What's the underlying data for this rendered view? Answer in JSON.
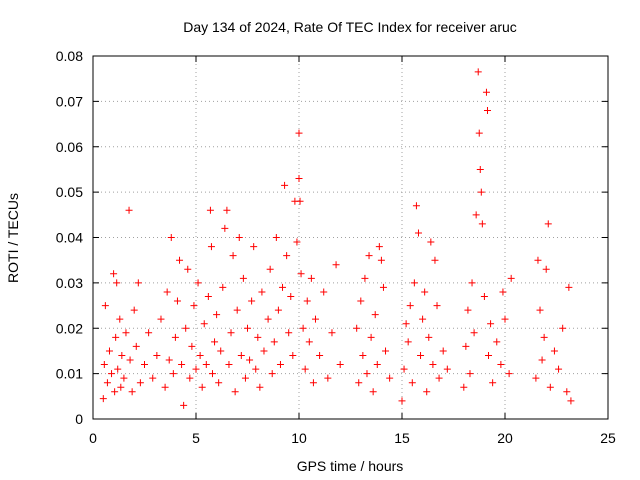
{
  "chart_data": {
    "type": "scatter",
    "title": "Day 134 of 2024, Rate Of TEC Index for receiver aruc",
    "xlabel": "GPS time / hours",
    "ylabel": "ROTI / TECUs",
    "xlim": [
      0,
      25
    ],
    "ylim": [
      0,
      0.08
    ],
    "x_ticks": [
      0,
      5,
      10,
      15,
      20,
      25
    ],
    "x_tick_labels": [
      "0",
      "5",
      "10",
      "15",
      "20",
      "25"
    ],
    "y_ticks": [
      0,
      0.01,
      0.02,
      0.03,
      0.04,
      0.05,
      0.06,
      0.07,
      0.08
    ],
    "y_tick_labels": [
      "0",
      "0.01",
      "0.02",
      "0.03",
      "0.04",
      "0.05",
      "0.06",
      "0.07",
      "0.08"
    ],
    "grid": true,
    "marker": "plus",
    "color": "#ff0000",
    "series": [
      {
        "values": [
          {
            "x": 0.5,
            "y": 0.0045
          },
          {
            "x": 0.55,
            "y": 0.012
          },
          {
            "x": 0.6,
            "y": 0.025
          },
          {
            "x": 0.7,
            "y": 0.008
          },
          {
            "x": 0.8,
            "y": 0.015
          },
          {
            "x": 0.9,
            "y": 0.01
          },
          {
            "x": 1.0,
            "y": 0.032
          },
          {
            "x": 1.05,
            "y": 0.006
          },
          {
            "x": 1.1,
            "y": 0.018
          },
          {
            "x": 1.15,
            "y": 0.03
          },
          {
            "x": 1.2,
            "y": 0.011
          },
          {
            "x": 1.3,
            "y": 0.022
          },
          {
            "x": 1.35,
            "y": 0.007
          },
          {
            "x": 1.4,
            "y": 0.014
          },
          {
            "x": 1.5,
            "y": 0.009
          },
          {
            "x": 1.6,
            "y": 0.019
          },
          {
            "x": 1.75,
            "y": 0.046
          },
          {
            "x": 1.8,
            "y": 0.013
          },
          {
            "x": 1.9,
            "y": 0.006
          },
          {
            "x": 2.0,
            "y": 0.024
          },
          {
            "x": 2.1,
            "y": 0.016
          },
          {
            "x": 2.2,
            "y": 0.03
          },
          {
            "x": 2.3,
            "y": 0.008
          },
          {
            "x": 2.5,
            "y": 0.012
          },
          {
            "x": 2.7,
            "y": 0.019
          },
          {
            "x": 2.9,
            "y": 0.009
          },
          {
            "x": 3.1,
            "y": 0.014
          },
          {
            "x": 3.3,
            "y": 0.022
          },
          {
            "x": 3.5,
            "y": 0.007
          },
          {
            "x": 3.6,
            "y": 0.028
          },
          {
            "x": 3.7,
            "y": 0.013
          },
          {
            "x": 3.8,
            "y": 0.04
          },
          {
            "x": 3.9,
            "y": 0.01
          },
          {
            "x": 4.0,
            "y": 0.018
          },
          {
            "x": 4.1,
            "y": 0.026
          },
          {
            "x": 4.2,
            "y": 0.035
          },
          {
            "x": 4.3,
            "y": 0.012
          },
          {
            "x": 4.4,
            "y": 0.003
          },
          {
            "x": 4.5,
            "y": 0.02
          },
          {
            "x": 4.6,
            "y": 0.033
          },
          {
            "x": 4.7,
            "y": 0.009
          },
          {
            "x": 4.8,
            "y": 0.016
          },
          {
            "x": 4.9,
            "y": 0.025
          },
          {
            "x": 5.0,
            "y": 0.011
          },
          {
            "x": 5.1,
            "y": 0.03
          },
          {
            "x": 5.2,
            "y": 0.014
          },
          {
            "x": 5.3,
            "y": 0.007
          },
          {
            "x": 5.4,
            "y": 0.021
          },
          {
            "x": 5.5,
            "y": 0.012
          },
          {
            "x": 5.6,
            "y": 0.027
          },
          {
            "x": 5.7,
            "y": 0.046
          },
          {
            "x": 5.75,
            "y": 0.038
          },
          {
            "x": 5.8,
            "y": 0.01
          },
          {
            "x": 5.9,
            "y": 0.017
          },
          {
            "x": 6.0,
            "y": 0.023
          },
          {
            "x": 6.1,
            "y": 0.008
          },
          {
            "x": 6.2,
            "y": 0.015
          },
          {
            "x": 6.3,
            "y": 0.029
          },
          {
            "x": 6.4,
            "y": 0.042
          },
          {
            "x": 6.5,
            "y": 0.046
          },
          {
            "x": 6.6,
            "y": 0.012
          },
          {
            "x": 6.7,
            "y": 0.019
          },
          {
            "x": 6.8,
            "y": 0.036
          },
          {
            "x": 6.9,
            "y": 0.006
          },
          {
            "x": 7.0,
            "y": 0.024
          },
          {
            "x": 7.1,
            "y": 0.04
          },
          {
            "x": 7.2,
            "y": 0.014
          },
          {
            "x": 7.3,
            "y": 0.031
          },
          {
            "x": 7.4,
            "y": 0.009
          },
          {
            "x": 7.5,
            "y": 0.02
          },
          {
            "x": 7.6,
            "y": 0.013
          },
          {
            "x": 7.7,
            "y": 0.026
          },
          {
            "x": 7.8,
            "y": 0.038
          },
          {
            "x": 7.9,
            "y": 0.011
          },
          {
            "x": 8.0,
            "y": 0.018
          },
          {
            "x": 8.1,
            "y": 0.007
          },
          {
            "x": 8.2,
            "y": 0.028
          },
          {
            "x": 8.3,
            "y": 0.015
          },
          {
            "x": 8.5,
            "y": 0.022
          },
          {
            "x": 8.6,
            "y": 0.033
          },
          {
            "x": 8.7,
            "y": 0.01
          },
          {
            "x": 8.8,
            "y": 0.017
          },
          {
            "x": 8.9,
            "y": 0.04
          },
          {
            "x": 9.0,
            "y": 0.024
          },
          {
            "x": 9.1,
            "y": 0.012
          },
          {
            "x": 9.2,
            "y": 0.029
          },
          {
            "x": 9.3,
            "y": 0.0515
          },
          {
            "x": 9.4,
            "y": 0.036
          },
          {
            "x": 9.5,
            "y": 0.019
          },
          {
            "x": 9.6,
            "y": 0.027
          },
          {
            "x": 9.7,
            "y": 0.014
          },
          {
            "x": 9.8,
            "y": 0.048
          },
          {
            "x": 9.9,
            "y": 0.039
          },
          {
            "x": 10.0,
            "y": 0.063
          },
          {
            "x": 10.0,
            "y": 0.053
          },
          {
            "x": 10.05,
            "y": 0.048
          },
          {
            "x": 10.1,
            "y": 0.032
          },
          {
            "x": 10.2,
            "y": 0.02
          },
          {
            "x": 10.3,
            "y": 0.011
          },
          {
            "x": 10.4,
            "y": 0.026
          },
          {
            "x": 10.5,
            "y": 0.017
          },
          {
            "x": 10.6,
            "y": 0.031
          },
          {
            "x": 10.7,
            "y": 0.008
          },
          {
            "x": 10.8,
            "y": 0.022
          },
          {
            "x": 11.0,
            "y": 0.014
          },
          {
            "x": 11.2,
            "y": 0.028
          },
          {
            "x": 11.4,
            "y": 0.009
          },
          {
            "x": 11.6,
            "y": 0.019
          },
          {
            "x": 11.8,
            "y": 0.034
          },
          {
            "x": 12.0,
            "y": 0.012
          },
          {
            "x": 12.8,
            "y": 0.02
          },
          {
            "x": 12.9,
            "y": 0.008
          },
          {
            "x": 13.0,
            "y": 0.026
          },
          {
            "x": 13.1,
            "y": 0.014
          },
          {
            "x": 13.2,
            "y": 0.031
          },
          {
            "x": 13.3,
            "y": 0.01
          },
          {
            "x": 13.4,
            "y": 0.036
          },
          {
            "x": 13.5,
            "y": 0.018
          },
          {
            "x": 13.6,
            "y": 0.006
          },
          {
            "x": 13.7,
            "y": 0.023
          },
          {
            "x": 13.8,
            "y": 0.012
          },
          {
            "x": 13.9,
            "y": 0.038
          },
          {
            "x": 14.0,
            "y": 0.035
          },
          {
            "x": 14.1,
            "y": 0.029
          },
          {
            "x": 14.2,
            "y": 0.015
          },
          {
            "x": 14.4,
            "y": 0.009
          },
          {
            "x": 15.0,
            "y": 0.004
          },
          {
            "x": 15.1,
            "y": 0.011
          },
          {
            "x": 15.2,
            "y": 0.021
          },
          {
            "x": 15.3,
            "y": 0.017
          },
          {
            "x": 15.4,
            "y": 0.025
          },
          {
            "x": 15.5,
            "y": 0.008
          },
          {
            "x": 15.6,
            "y": 0.03
          },
          {
            "x": 15.7,
            "y": 0.047
          },
          {
            "x": 15.8,
            "y": 0.041
          },
          {
            "x": 15.9,
            "y": 0.014
          },
          {
            "x": 16.0,
            "y": 0.022
          },
          {
            "x": 16.1,
            "y": 0.028
          },
          {
            "x": 16.2,
            "y": 0.006
          },
          {
            "x": 16.3,
            "y": 0.018
          },
          {
            "x": 16.4,
            "y": 0.039
          },
          {
            "x": 16.5,
            "y": 0.012
          },
          {
            "x": 16.6,
            "y": 0.035
          },
          {
            "x": 16.7,
            "y": 0.025
          },
          {
            "x": 16.8,
            "y": 0.009
          },
          {
            "x": 17.0,
            "y": 0.015
          },
          {
            "x": 17.2,
            "y": 0.011
          },
          {
            "x": 18.0,
            "y": 0.007
          },
          {
            "x": 18.1,
            "y": 0.016
          },
          {
            "x": 18.2,
            "y": 0.024
          },
          {
            "x": 18.3,
            "y": 0.01
          },
          {
            "x": 18.4,
            "y": 0.03
          },
          {
            "x": 18.5,
            "y": 0.019
          },
          {
            "x": 18.6,
            "y": 0.045
          },
          {
            "x": 18.7,
            "y": 0.0765
          },
          {
            "x": 18.75,
            "y": 0.063
          },
          {
            "x": 18.8,
            "y": 0.055
          },
          {
            "x": 18.85,
            "y": 0.05
          },
          {
            "x": 18.9,
            "y": 0.043
          },
          {
            "x": 19.0,
            "y": 0.027
          },
          {
            "x": 19.1,
            "y": 0.072
          },
          {
            "x": 19.15,
            "y": 0.068
          },
          {
            "x": 19.2,
            "y": 0.014
          },
          {
            "x": 19.3,
            "y": 0.021
          },
          {
            "x": 19.4,
            "y": 0.008
          },
          {
            "x": 19.6,
            "y": 0.017
          },
          {
            "x": 19.8,
            "y": 0.012
          },
          {
            "x": 19.9,
            "y": 0.028
          },
          {
            "x": 20.0,
            "y": 0.022
          },
          {
            "x": 20.2,
            "y": 0.01
          },
          {
            "x": 20.3,
            "y": 0.031
          },
          {
            "x": 21.5,
            "y": 0.009
          },
          {
            "x": 21.6,
            "y": 0.035
          },
          {
            "x": 21.7,
            "y": 0.024
          },
          {
            "x": 21.8,
            "y": 0.013
          },
          {
            "x": 21.9,
            "y": 0.018
          },
          {
            "x": 22.0,
            "y": 0.033
          },
          {
            "x": 22.1,
            "y": 0.043
          },
          {
            "x": 22.2,
            "y": 0.007
          },
          {
            "x": 22.4,
            "y": 0.015
          },
          {
            "x": 22.6,
            "y": 0.011
          },
          {
            "x": 22.8,
            "y": 0.02
          },
          {
            "x": 23.0,
            "y": 0.006
          },
          {
            "x": 23.1,
            "y": 0.029
          },
          {
            "x": 23.2,
            "y": 0.004
          }
        ]
      }
    ]
  }
}
